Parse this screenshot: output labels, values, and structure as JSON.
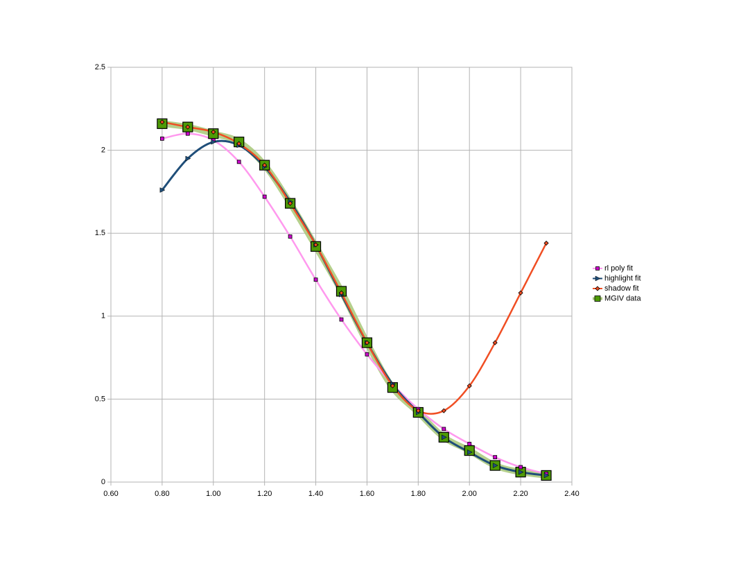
{
  "chart_data": {
    "type": "scatter-line",
    "x": [
      0.8,
      0.9,
      1.0,
      1.1,
      1.2,
      1.3,
      1.4,
      1.5,
      1.6,
      1.7,
      1.8,
      1.9,
      2.0,
      2.1,
      2.2,
      2.3
    ],
    "series": [
      {
        "name": "rl poly fit",
        "color": "#ff99ee",
        "marker_color": "#cc00cc",
        "marker": "square",
        "values": [
          2.07,
          2.1,
          2.06,
          1.93,
          1.72,
          1.48,
          1.22,
          0.98,
          0.77,
          0.59,
          0.44,
          0.32,
          0.23,
          0.15,
          0.09,
          0.05
        ]
      },
      {
        "name": "highlight fit",
        "color": "#1f4e79",
        "marker_color": "#1f4e79",
        "marker": "triangle",
        "values": [
          1.76,
          1.95,
          2.05,
          2.03,
          1.9,
          1.69,
          1.43,
          1.13,
          0.84,
          0.59,
          0.42,
          0.27,
          0.18,
          0.1,
          0.06,
          0.04
        ]
      },
      {
        "name": "shadow fit",
        "color": "#f04e23",
        "marker_color": "#f04e23",
        "marker": "diamond",
        "values": [
          2.17,
          2.14,
          2.11,
          2.04,
          1.91,
          1.68,
          1.43,
          1.14,
          0.84,
          0.58,
          0.43,
          0.43,
          0.58,
          0.84,
          1.14,
          1.44
        ]
      },
      {
        "name": "MGIV data",
        "color": "#a8c878",
        "marker_color": "#4e9a06",
        "marker": "big-square",
        "values": [
          2.16,
          2.14,
          2.1,
          2.05,
          1.91,
          1.68,
          1.42,
          1.15,
          0.84,
          0.57,
          0.42,
          0.27,
          0.19,
          0.1,
          0.06,
          0.04
        ]
      }
    ],
    "xlim": [
      0.6,
      2.4
    ],
    "xticks": [
      {
        "value": 0.6,
        "label": "0.60"
      },
      {
        "value": 0.8,
        "label": "0.80"
      },
      {
        "value": 1.0,
        "label": "1.00"
      },
      {
        "value": 1.2,
        "label": "1.20"
      },
      {
        "value": 1.4,
        "label": "1.40"
      },
      {
        "value": 1.6,
        "label": "1.60"
      },
      {
        "value": 1.8,
        "label": "1.80"
      },
      {
        "value": 2.0,
        "label": "2.00"
      },
      {
        "value": 2.2,
        "label": "2.20"
      },
      {
        "value": 2.4,
        "label": "2.40"
      }
    ],
    "ylim": [
      0,
      2.5
    ],
    "yticks": [
      0,
      0.5,
      1,
      1.5,
      2,
      2.5
    ],
    "grid": true,
    "legend": "right"
  }
}
